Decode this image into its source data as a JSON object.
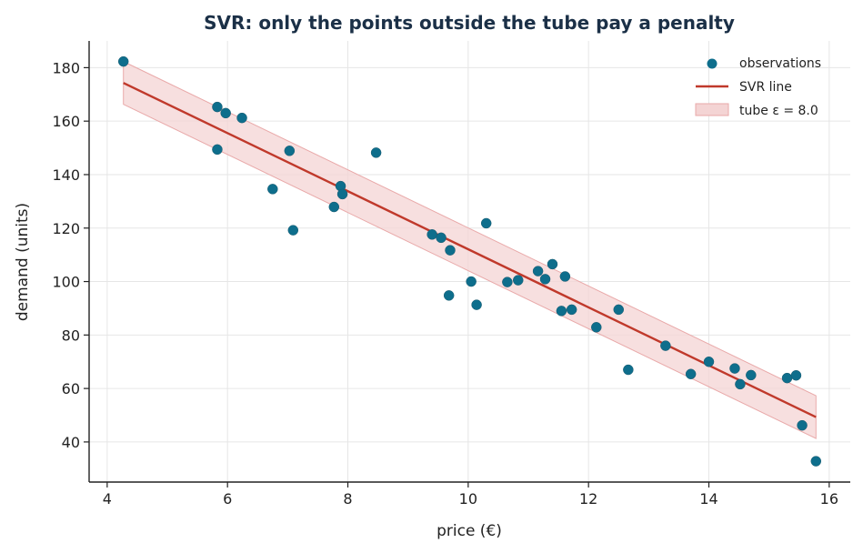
{
  "chart_data": {
    "type": "scatter",
    "title": "SVR: only the points outside the tube pay a penalty",
    "xlabel": "price (€)",
    "ylabel": "demand (units)",
    "xlim": [
      3.7,
      16.35
    ],
    "ylim": [
      25,
      190
    ],
    "xticks": [
      4,
      6,
      8,
      10,
      12,
      14,
      16
    ],
    "yticks": [
      40,
      60,
      80,
      100,
      120,
      140,
      160,
      180
    ],
    "grid": true,
    "legend_position": "top-right",
    "colors": {
      "points": "#0e6e8c",
      "line": "#c0392b",
      "tube_fill": "#f4d4d4",
      "tube_edge": "#e9a9a9",
      "title": "#1b3047"
    },
    "series": [
      {
        "name": "observations",
        "type": "scatter",
        "x": [
          4.27,
          5.83,
          5.83,
          5.97,
          6.24,
          6.75,
          7.03,
          7.09,
          7.77,
          7.88,
          7.91,
          8.47,
          9.4,
          9.55,
          9.7,
          9.68,
          10.05,
          10.14,
          10.3,
          10.65,
          10.83,
          11.16,
          11.28,
          11.4,
          11.55,
          11.61,
          11.72,
          12.13,
          12.5,
          12.66,
          13.28,
          13.7,
          14.0,
          14.43,
          14.52,
          14.7,
          15.3,
          15.45,
          15.55,
          15.78
        ],
        "y": [
          182.3,
          165.3,
          149.4,
          163.0,
          161.2,
          134.6,
          148.9,
          119.2,
          127.9,
          135.7,
          132.7,
          148.2,
          117.6,
          116.4,
          111.7,
          94.8,
          100.0,
          91.3,
          121.8,
          99.8,
          100.5,
          103.9,
          100.9,
          106.5,
          89.0,
          101.9,
          89.5,
          82.9,
          89.5,
          67.0,
          76.0,
          65.4,
          70.0,
          67.5,
          61.6,
          65.0,
          63.9,
          64.9,
          46.2,
          32.8
        ]
      },
      {
        "name": "SVR line",
        "type": "line",
        "x": [
          4.27,
          15.78
        ],
        "y": [
          174.3,
          49.3
        ]
      },
      {
        "name": "tube ε = 8.0",
        "type": "area",
        "epsilon": 8.0,
        "x": [
          4.27,
          15.78
        ],
        "y_lower": [
          166.3,
          41.3
        ],
        "y_upper": [
          182.3,
          57.3
        ]
      }
    ],
    "legend": [
      "observations",
      "SVR line",
      "tube ε = 8.0"
    ]
  }
}
